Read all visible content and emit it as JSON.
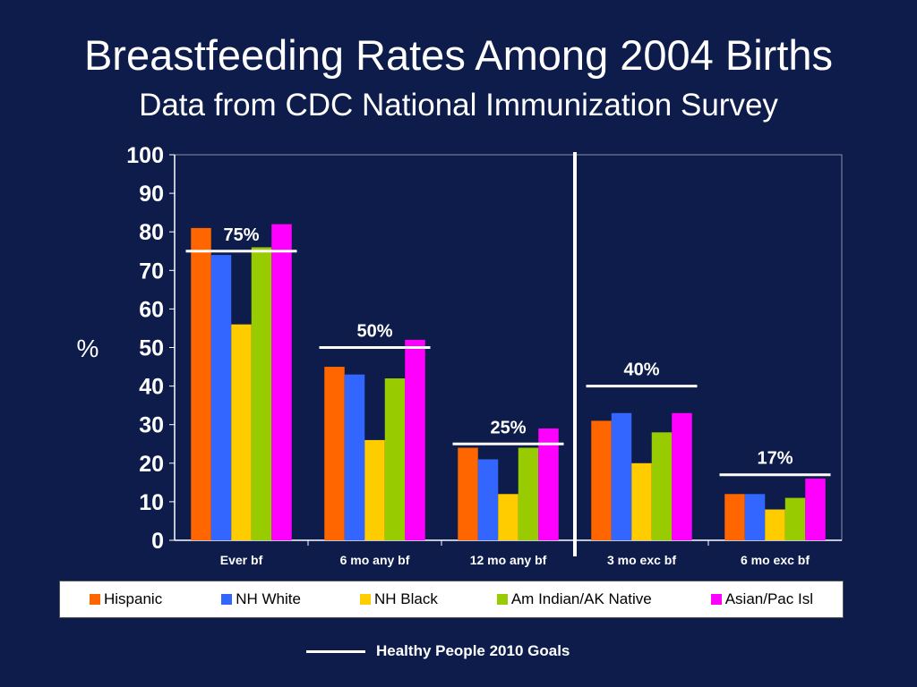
{
  "title": "Breastfeeding Rates Among 2004 Births",
  "subtitle": "Data from CDC National Immunization Survey",
  "chart_data": {
    "type": "bar",
    "title": "Breastfeeding Rates Among 2004 Births",
    "subtitle": "Data from CDC National Immunization Survey",
    "ylabel": "%",
    "xlabel": "",
    "ylim": [
      0,
      100
    ],
    "yticks": [
      0,
      10,
      20,
      30,
      40,
      50,
      60,
      70,
      80,
      90,
      100
    ],
    "grid": false,
    "legend_position": "bottom",
    "categories": [
      "Ever bf",
      "6 mo any bf",
      "12 mo any bf",
      "3 mo exc bf",
      "6 mo exc bf"
    ],
    "series": [
      {
        "name": "Hispanic",
        "color": "#ff6600",
        "values": [
          81,
          45,
          24,
          31,
          12
        ]
      },
      {
        "name": "NH White",
        "color": "#3366ff",
        "values": [
          74,
          43,
          21,
          33,
          12
        ]
      },
      {
        "name": "NH Black",
        "color": "#ffcc00",
        "values": [
          56,
          26,
          12,
          20,
          8
        ]
      },
      {
        "name": "Am Indian/AK Native",
        "color": "#99cc00",
        "values": [
          76,
          42,
          24,
          28,
          11
        ]
      },
      {
        "name": "Asian/Pac Isl",
        "color": "#ff00ff",
        "values": [
          82,
          52,
          29,
          33,
          16
        ]
      }
    ],
    "goals": [
      {
        "category": "Ever bf",
        "value": 75,
        "label": "75%"
      },
      {
        "category": "6 mo any bf",
        "value": 50,
        "label": "50%"
      },
      {
        "category": "12 mo any bf",
        "value": 25,
        "label": "25%"
      },
      {
        "category": "3 mo exc bf",
        "value": 40,
        "label": "40%"
      },
      {
        "category": "6 mo exc bf",
        "value": 17,
        "label": "17%"
      }
    ],
    "divider_after_category": "12 mo any bf",
    "goals_legend_label": "Healthy People 2010 Goals"
  }
}
